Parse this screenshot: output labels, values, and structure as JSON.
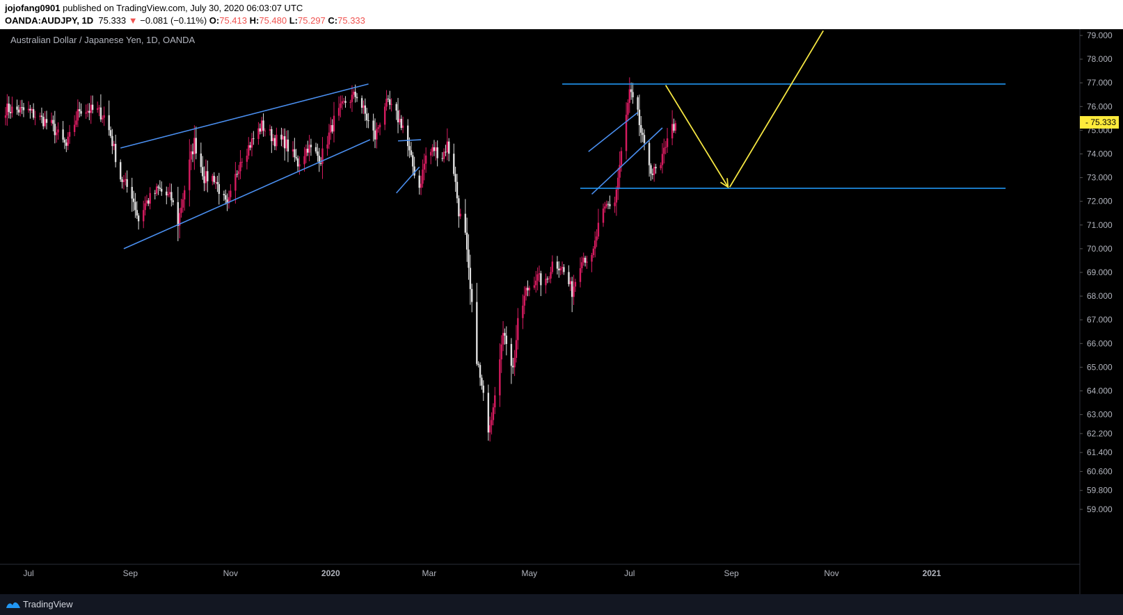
{
  "header": {
    "author": "jojofang0901",
    "published": " published on TradingView.com, July 30, 2020 06:03:07 UTC",
    "symbol": "OANDA:AUDJPY, 1D",
    "last": "75.333",
    "change": "−0.081 (−0.11%)",
    "o_label": "O:",
    "o_val": "75.413",
    "h_label": "H:",
    "h_val": "75.480",
    "l_label": "L:",
    "l_val": "75.297",
    "c_label": "C:",
    "c_val": "75.333"
  },
  "footer": {
    "brand": "TradingView"
  },
  "colors": {
    "up": "#d81b60",
    "down": "#e0e0e0",
    "trendline": "#4a8ff0",
    "hline": "#2196f3",
    "arrow": "#f5e642",
    "price_badge": "#ffeb3b",
    "axis_text": "#b2b5be",
    "background": "#000000"
  },
  "chart_data": {
    "type": "candlestick",
    "title": "Australian Dollar / Japanese Yen, 1D, OANDA",
    "ylim": [
      58.5,
      79.1
    ],
    "y_ticks": [
      79,
      78,
      77,
      76,
      75,
      74,
      73,
      72,
      71,
      70,
      69,
      68,
      67,
      66,
      65,
      64,
      63,
      62.2,
      61.4,
      60.6,
      59.8,
      59
    ],
    "y_tick_labels": [
      "79.000",
      "78.000",
      "77.000",
      "76.000",
      "75.000",
      "74.000",
      "73.000",
      "72.000",
      "71.000",
      "70.000",
      "69.000",
      "68.000",
      "67.000",
      "66.000",
      "65.000",
      "64.000",
      "63.000",
      "62.200",
      "61.400",
      "60.600",
      "59.800",
      "59.000"
    ],
    "x_labels": [
      "Jul",
      "Sep",
      "Nov",
      "2020",
      "Mar",
      "May",
      "Jul",
      "Sep",
      "Nov",
      "2021"
    ],
    "current_price": "75.333",
    "anchors": [
      [
        "2019-06-17",
        75.9
      ],
      [
        "2019-07-01",
        75.8
      ],
      [
        "2019-07-15",
        75.2
      ],
      [
        "2019-07-24",
        74.3
      ],
      [
        "2019-08-01",
        75.9
      ],
      [
        "2019-08-12",
        75.8
      ],
      [
        "2019-08-16",
        75.6
      ],
      [
        "2019-08-20",
        74.8
      ],
      [
        "2019-08-26",
        73.0
      ],
      [
        "2019-09-02",
        72.3
      ],
      [
        "2019-09-06",
        71.2
      ],
      [
        "2019-09-10",
        71.9
      ],
      [
        "2019-09-18",
        72.5
      ],
      [
        "2019-09-26",
        72.1
      ],
      [
        "2019-09-30",
        71.1
      ],
      [
        "2019-10-07",
        73.6
      ],
      [
        "2019-10-10",
        74.5
      ],
      [
        "2019-10-16",
        73.0
      ],
      [
        "2019-10-22",
        73.0
      ],
      [
        "2019-10-30",
        71.7
      ],
      [
        "2019-11-07",
        73.8
      ],
      [
        "2019-11-12",
        74.3
      ],
      [
        "2019-11-20",
        75.2
      ],
      [
        "2019-11-28",
        74.6
      ],
      [
        "2019-12-04",
        74.5
      ],
      [
        "2019-12-12",
        73.6
      ],
      [
        "2019-12-18",
        74.3
      ],
      [
        "2019-12-26",
        73.8
      ],
      [
        "2020-01-03",
        75.4
      ],
      [
        "2020-01-10",
        76.2
      ],
      [
        "2020-01-17",
        76.5
      ],
      [
        "2020-01-23",
        75.5
      ],
      [
        "2020-01-28",
        74.7
      ],
      [
        "2020-02-03",
        76.1
      ],
      [
        "2020-02-06",
        76.0
      ],
      [
        "2020-02-14",
        75.2
      ],
      [
        "2020-02-19",
        73.7
      ],
      [
        "2020-02-24",
        72.6
      ],
      [
        "2020-02-28",
        73.9
      ],
      [
        "2020-03-04",
        74.2
      ],
      [
        "2020-03-09",
        73.9
      ],
      [
        "2020-03-12",
        74.4
      ],
      [
        "2020-03-16",
        73.3
      ],
      [
        "2020-03-19",
        71.6
      ],
      [
        "2020-03-23",
        70.5
      ],
      [
        "2020-03-26",
        68.2
      ],
      [
        "2020-03-30",
        65.4
      ],
      [
        "2020-04-01",
        64.5
      ],
      [
        "2020-04-06",
        62.5
      ],
      [
        "2020-04-08",
        63.0
      ],
      [
        "2020-04-13",
        65.6
      ],
      [
        "2020-04-16",
        66.5
      ],
      [
        "2020-04-21",
        64.9
      ],
      [
        "2020-04-24",
        66.8
      ],
      [
        "2020-04-29",
        68.2
      ],
      [
        "2020-05-05",
        68.8
      ],
      [
        "2020-05-11",
        68.5
      ],
      [
        "2020-05-15",
        69.4
      ],
      [
        "2020-05-20",
        69.3
      ],
      [
        "2020-05-27",
        68.2
      ],
      [
        "2020-06-02",
        69.7
      ],
      [
        "2020-06-08",
        69.5
      ],
      [
        "2020-06-12",
        70.9
      ],
      [
        "2020-06-17",
        71.8
      ],
      [
        "2020-06-22",
        72.0
      ],
      [
        "2020-06-26",
        74.0
      ],
      [
        "2020-07-01",
        76.6
      ],
      [
        "2020-07-06",
        75.6
      ],
      [
        "2020-07-10",
        74.2
      ],
      [
        "2020-07-15",
        73.2
      ],
      [
        "2020-07-20",
        73.4
      ],
      [
        "2020-07-24",
        74.8
      ],
      [
        "2020-07-29",
        75.3
      ]
    ],
    "trendlines": [
      {
        "from": [
          "2019-08-26",
          74.25
        ],
        "to": [
          "2020-01-24",
          76.95
        ]
      },
      {
        "from": [
          "2019-08-28",
          70.0
        ],
        "to": [
          "2020-01-25",
          74.6
        ]
      },
      {
        "from": [
          "2020-02-11",
          74.55
        ],
        "to": [
          "2020-02-25",
          74.6
        ]
      },
      {
        "from": [
          "2020-02-10",
          72.35
        ],
        "to": [
          "2020-02-24",
          73.45
        ]
      },
      {
        "from": [
          "2020-06-06",
          74.1
        ],
        "to": [
          "2020-07-06",
          75.75
        ]
      },
      {
        "from": [
          "2020-06-08",
          72.3
        ],
        "to": [
          "2020-07-21",
          75.1
        ]
      }
    ],
    "horizontal_lines": [
      {
        "from": "2020-05-21",
        "to": "2021-02-15",
        "y": 76.95
      },
      {
        "from": "2020-06-01",
        "to": "2021-02-15",
        "y": 72.55
      }
    ],
    "arrows": [
      {
        "from": [
          "2020-07-23",
          76.9
        ],
        "to": [
          "2020-08-30",
          72.6
        ],
        "head": true
      },
      {
        "from": [
          "2020-08-31",
          72.6
        ],
        "to": [
          "2020-10-27",
          79.2
        ],
        "head": false
      }
    ]
  }
}
